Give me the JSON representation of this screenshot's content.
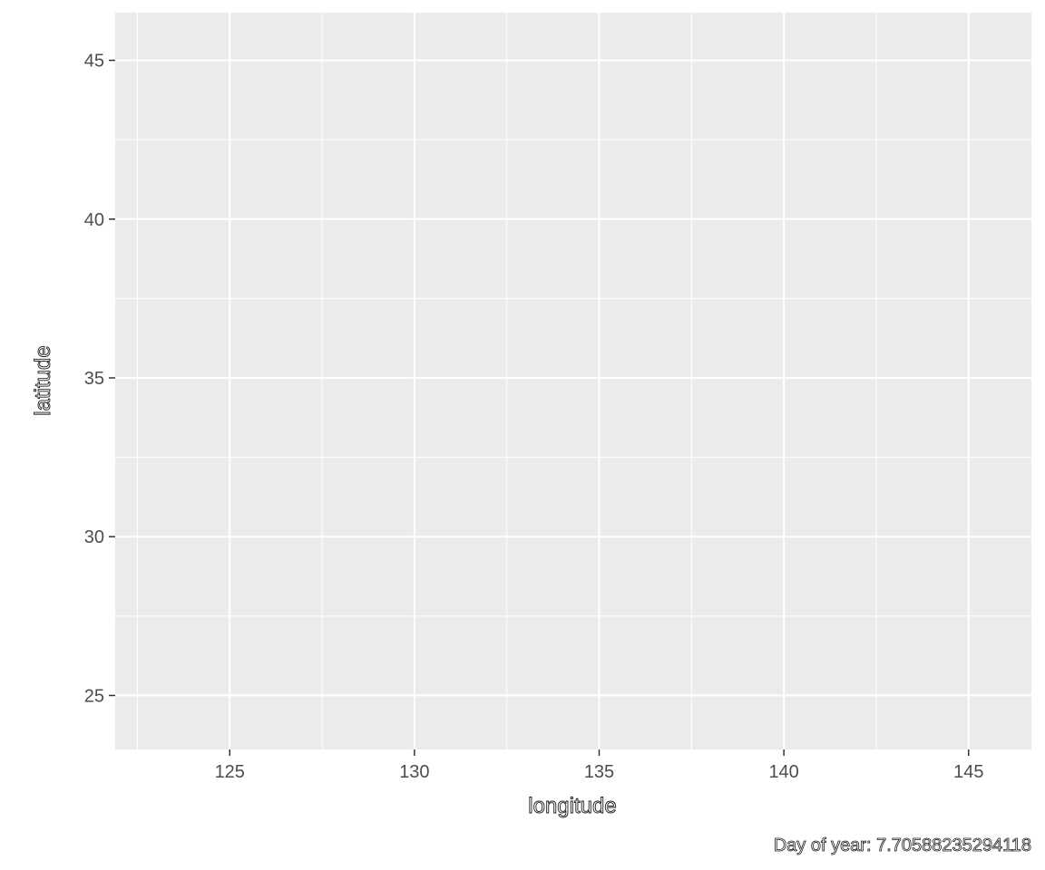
{
  "chart_data": {
    "type": "scatter",
    "title": "",
    "xlabel": "longitude",
    "ylabel": "latitude",
    "caption": "Day of year: 7.70588235294118",
    "xlim": [
      121.9,
      146.7
    ],
    "ylim": [
      23.3,
      46.5
    ],
    "x_ticks": [
      125,
      130,
      135,
      140,
      145
    ],
    "x_tick_labels": [
      "125",
      "130",
      "135",
      "140",
      "145"
    ],
    "x_minor_ticks": [
      122.5,
      127.5,
      132.5,
      137.5,
      142.5
    ],
    "y_ticks": [
      25,
      30,
      35,
      40,
      45
    ],
    "y_tick_labels": [
      "25",
      "30",
      "35",
      "40",
      "45"
    ],
    "y_minor_ticks": [
      27.5,
      32.5,
      37.5,
      42.5
    ],
    "series": [],
    "grid": true,
    "legend": "none",
    "colors": {
      "panel_background": "#ebebeb",
      "grid_line": "#ffffff",
      "tick_mark": "#333333",
      "tick_label": "#4d4d4d",
      "axis_title": "#1a1a1a"
    }
  }
}
